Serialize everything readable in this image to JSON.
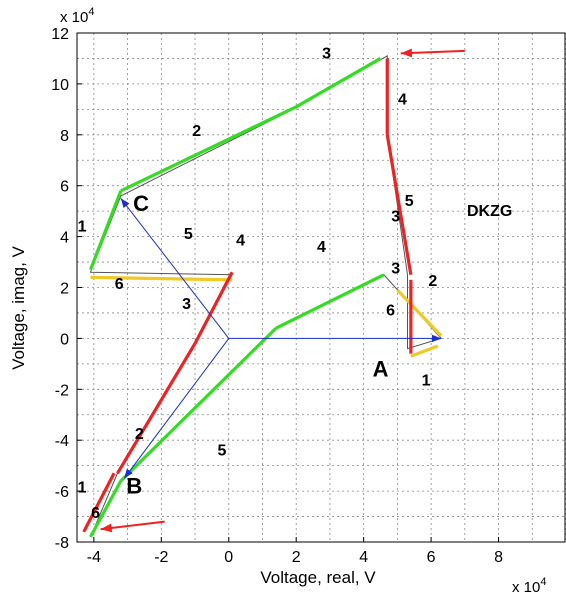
{
  "chart_data": {
    "type": "line",
    "title": "",
    "xlabel": "Voltage, real, V",
    "ylabel": "Voltage, imag, V",
    "x_multiplier": "x 10",
    "y_multiplier": "x 10",
    "multiplier_exponent": "4",
    "xlim": [
      -4.5,
      10
    ],
    "ylim": [
      -8,
      12
    ],
    "x_ticks": [
      -4,
      -2,
      0,
      2,
      4,
      6,
      8
    ],
    "y_ticks": [
      -8,
      -6,
      -4,
      -2,
      0,
      2,
      4,
      6,
      8,
      10,
      12
    ],
    "grid": true,
    "annotation": "DKZG",
    "colors": {
      "green": "#33dd22",
      "red": "#ee2222",
      "yellow": "#f0c828",
      "blue": "#1a2fd0",
      "gray": "#555555"
    },
    "phasors": [
      {
        "name": "A",
        "x": [
          0,
          6.3
        ],
        "y": [
          0,
          0
        ]
      },
      {
        "name": "B",
        "x": [
          0,
          -3.1
        ],
        "y": [
          0,
          -5.5
        ]
      },
      {
        "name": "C",
        "x": [
          0,
          -3.2
        ],
        "y": [
          0,
          5.5
        ]
      }
    ],
    "phase_labels": [
      {
        "text": "A",
        "x": 4.5,
        "y": -1.5
      },
      {
        "text": "B",
        "x": -2.8,
        "y": -6.1
      },
      {
        "text": "C",
        "x": -2.6,
        "y": 5.0
      }
    ],
    "segments": [
      {
        "color": "green",
        "x": [
          -4.1,
          -3.2
        ],
        "y": [
          -7.8,
          -5.6
        ]
      },
      {
        "color": "green",
        "x": [
          -3.2,
          1.4
        ],
        "y": [
          -5.6,
          0.4
        ]
      },
      {
        "color": "green",
        "x": [
          1.4,
          4.6
        ],
        "y": [
          0.4,
          2.5
        ]
      },
      {
        "color": "yellow",
        "x": [
          5.0,
          6.3
        ],
        "y": [
          1.9,
          0.1
        ]
      },
      {
        "color": "yellow",
        "x": [
          5.4,
          6.2
        ],
        "y": [
          -0.7,
          -0.3
        ]
      },
      {
        "color": "red",
        "x": [
          5.4,
          5.4
        ],
        "y": [
          2.3,
          -0.6
        ]
      },
      {
        "color": "red",
        "x": [
          5.4,
          4.7
        ],
        "y": [
          2.5,
          8.0
        ]
      },
      {
        "color": "red",
        "x": [
          4.7,
          4.7
        ],
        "y": [
          8.0,
          11.0
        ]
      },
      {
        "color": "green",
        "x": [
          4.5,
          2.0
        ],
        "y": [
          11.0,
          9.1
        ]
      },
      {
        "color": "green",
        "x": [
          2.0,
          -3.2
        ],
        "y": [
          9.1,
          5.8
        ]
      },
      {
        "color": "green",
        "x": [
          -3.2,
          -4.1
        ],
        "y": [
          5.8,
          2.7
        ]
      },
      {
        "color": "yellow",
        "x": [
          -4.1,
          0.1
        ],
        "y": [
          2.4,
          2.3
        ]
      },
      {
        "color": "red",
        "x": [
          0.1,
          -1.0
        ],
        "y": [
          2.6,
          -0.2
        ]
      },
      {
        "color": "red",
        "x": [
          -1.0,
          -3.3
        ],
        "y": [
          -0.2,
          -5.3
        ]
      },
      {
        "color": "red",
        "x": [
          -3.4,
          -4.3
        ],
        "y": [
          -5.3,
          -7.6
        ]
      }
    ],
    "traces": [
      {
        "x": [
          -4.1,
          -3.2,
          1.4,
          4.6,
          6.3,
          5.3,
          5.3,
          4.7,
          4.7,
          1.9,
          -3.2,
          -4.1,
          0.1,
          -1.0,
          -3.3,
          -4.1
        ],
        "y": [
          -7.8,
          -5.6,
          0.4,
          2.5,
          0.0,
          -0.4,
          2.5,
          8.0,
          11.1,
          9.0,
          5.6,
          2.6,
          2.5,
          -0.2,
          -5.3,
          -7.8
        ]
      }
    ],
    "segment_labels": [
      {
        "text": "1",
        "x": 5.85,
        "y": -1.85
      },
      {
        "text": "2",
        "x": 6.05,
        "y": 2.05
      },
      {
        "text": "3",
        "x": 4.95,
        "y": 4.6
      },
      {
        "text": "3",
        "x": 4.95,
        "y": 2.55
      },
      {
        "text": "4",
        "x": 5.15,
        "y": 9.2
      },
      {
        "text": "4",
        "x": 2.75,
        "y": 3.4
      },
      {
        "text": "5",
        "x": 5.35,
        "y": 5.2
      },
      {
        "text": "6",
        "x": 4.8,
        "y": 0.9
      },
      {
        "text": "1",
        "x": -4.35,
        "y": 4.2
      },
      {
        "text": "2",
        "x": -0.95,
        "y": 7.95
      },
      {
        "text": "3",
        "x": 2.9,
        "y": 11.0
      },
      {
        "text": "4",
        "x": 0.35,
        "y": 3.65
      },
      {
        "text": "5",
        "x": -1.2,
        "y": 3.9
      },
      {
        "text": "6",
        "x": -3.25,
        "y": 1.95
      },
      {
        "text": "3",
        "x": -1.25,
        "y": 1.15
      },
      {
        "text": "2",
        "x": -2.65,
        "y": -3.95
      },
      {
        "text": "5",
        "x": -0.2,
        "y": -4.6
      },
      {
        "text": "1",
        "x": -4.35,
        "y": -6.05
      },
      {
        "text": "6",
        "x": -3.95,
        "y": -7.05
      }
    ],
    "arrows": [
      {
        "color": "red",
        "x": [
          7.0,
          5.1
        ],
        "y": [
          11.3,
          11.2
        ]
      },
      {
        "color": "red",
        "x": [
          -1.9,
          -3.8
        ],
        "y": [
          -7.2,
          -7.5
        ]
      }
    ]
  }
}
